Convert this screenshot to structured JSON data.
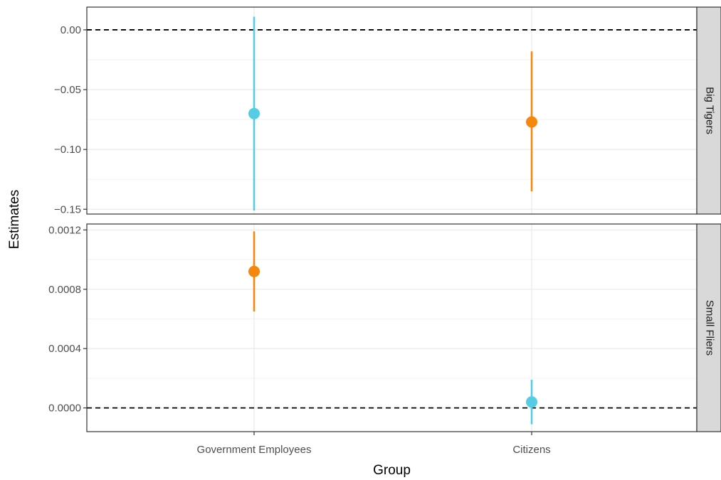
{
  "chart_data": {
    "type": "scatter",
    "subtype": "point-range-faceted",
    "xlabel": "Group",
    "ylabel": "Estimates",
    "categories": [
      "Government Employees",
      "Citizens"
    ],
    "reference_line": 0,
    "grid": true,
    "colors": {
      "cyan": "#56CCE4",
      "orange": "#F5870D"
    },
    "panels": [
      {
        "label": "Big Tigers",
        "ylim": [
          -0.154,
          0.019
        ],
        "ticks": [
          0.0,
          -0.05,
          -0.1,
          -0.15
        ],
        "tick_labels": [
          "0.00",
          "−0.05",
          "−0.10",
          "−0.15"
        ],
        "points": [
          {
            "category": "Government Employees",
            "estimate": -0.07,
            "lower": -0.151,
            "upper": 0.011,
            "color": "cyan"
          },
          {
            "category": "Citizens",
            "estimate": -0.077,
            "lower": -0.135,
            "upper": -0.018,
            "color": "orange"
          }
        ]
      },
      {
        "label": "Small Fliers",
        "ylim": [
          -0.00016,
          0.00124
        ],
        "ticks": [
          0.0012,
          0.0008,
          0.0004,
          0.0
        ],
        "tick_labels": [
          "0.0012",
          "0.0008",
          "0.0004",
          "0.0000"
        ],
        "points": [
          {
            "category": "Government Employees",
            "estimate": 0.00092,
            "lower": 0.00065,
            "upper": 0.00119,
            "color": "orange"
          },
          {
            "category": "Citizens",
            "estimate": 4e-05,
            "lower": -0.00011,
            "upper": 0.00019,
            "color": "cyan"
          }
        ]
      }
    ]
  }
}
